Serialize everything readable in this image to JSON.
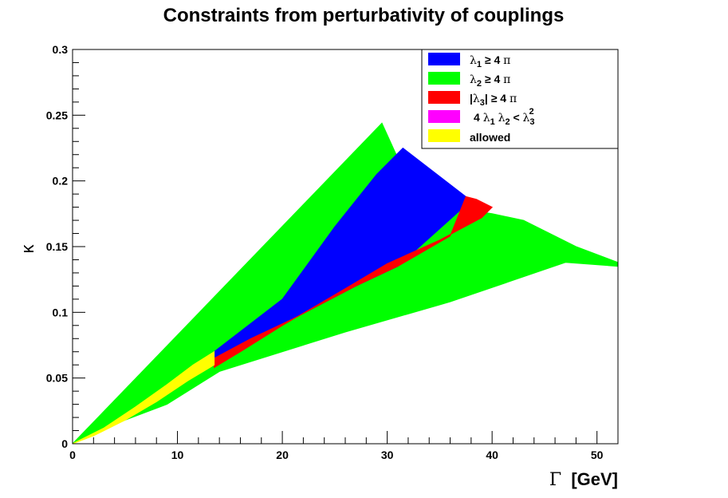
{
  "chart_data": {
    "type": "heatmap",
    "title": "Constraints from perturbativity of couplings",
    "xlabel_sym": "Γ",
    "xlabel_rest": "[GeV]",
    "ylabel": "κ",
    "xlim": [
      0,
      52
    ],
    "ylim": [
      0,
      0.3
    ],
    "x_ticks": [
      "0",
      "10",
      "20",
      "30",
      "40",
      "50"
    ],
    "y_ticks": [
      "0",
      "0.05",
      "0.1",
      "0.15",
      "0.2",
      "0.25",
      "0.3"
    ],
    "grid": false,
    "legend_position": "top-right",
    "legend": [
      {
        "color": "#0000ff",
        "text": "λ1 ≥ 4 π"
      },
      {
        "color": "#00ff00",
        "text": "λ2 ≥ 4 π"
      },
      {
        "color": "#ff0000",
        "text": "|λ3| ≥ 4 π"
      },
      {
        "color": "#ff00ff",
        "text": "4 λ1 λ2 < λ3²"
      },
      {
        "color": "#ffff00",
        "text": "allowed"
      }
    ],
    "regions": [
      {
        "name": "λ2 ≥ 4 π",
        "color": "#00ff00",
        "points": [
          [
            0,
            0
          ],
          [
            29.5,
            0.244
          ],
          [
            32,
            0.2
          ],
          [
            36,
            0.18
          ],
          [
            40,
            0.175
          ],
          [
            43,
            0.17
          ],
          [
            48,
            0.15
          ],
          [
            52,
            0.138
          ],
          [
            52,
            0.135
          ],
          [
            47,
            0.138
          ],
          [
            36,
            0.108
          ],
          [
            26,
            0.085
          ],
          [
            14,
            0.055
          ],
          [
            9,
            0.03
          ],
          [
            5,
            0.018
          ],
          [
            2,
            0.007
          ]
        ]
      },
      {
        "name": "λ1 ≥ 4 π",
        "color": "#0000ff",
        "points": [
          [
            13.5,
            0.07
          ],
          [
            20,
            0.11
          ],
          [
            25,
            0.165
          ],
          [
            29,
            0.205
          ],
          [
            31.5,
            0.225
          ],
          [
            37.5,
            0.188
          ],
          [
            37,
            0.178
          ],
          [
            31,
            0.135
          ],
          [
            27,
            0.12
          ],
          [
            21,
            0.095
          ],
          [
            17,
            0.08
          ],
          [
            13.5,
            0.065
          ]
        ]
      },
      {
        "name": "|λ3| ≥ 4 π",
        "color": "#ff0000",
        "points": [
          [
            13.5,
            0.065
          ],
          [
            17,
            0.08
          ],
          [
            21,
            0.095
          ],
          [
            27,
            0.12
          ],
          [
            31,
            0.135
          ],
          [
            36,
            0.158
          ],
          [
            37.5,
            0.188
          ],
          [
            38.5,
            0.186
          ],
          [
            40,
            0.18
          ],
          [
            39,
            0.172
          ],
          [
            35,
            0.155
          ],
          [
            30,
            0.137
          ],
          [
            26,
            0.118
          ],
          [
            20,
            0.09
          ],
          [
            16,
            0.07
          ],
          [
            13.5,
            0.058
          ]
        ]
      },
      {
        "name": "allowed",
        "color": "#ffff00",
        "points": [
          [
            0,
            0
          ],
          [
            3,
            0.012
          ],
          [
            6,
            0.028
          ],
          [
            9,
            0.045
          ],
          [
            11.5,
            0.06
          ],
          [
            13.5,
            0.07
          ],
          [
            13.5,
            0.06
          ],
          [
            11,
            0.048
          ],
          [
            8,
            0.032
          ],
          [
            5,
            0.018
          ],
          [
            2,
            0.006
          ]
        ]
      }
    ]
  }
}
